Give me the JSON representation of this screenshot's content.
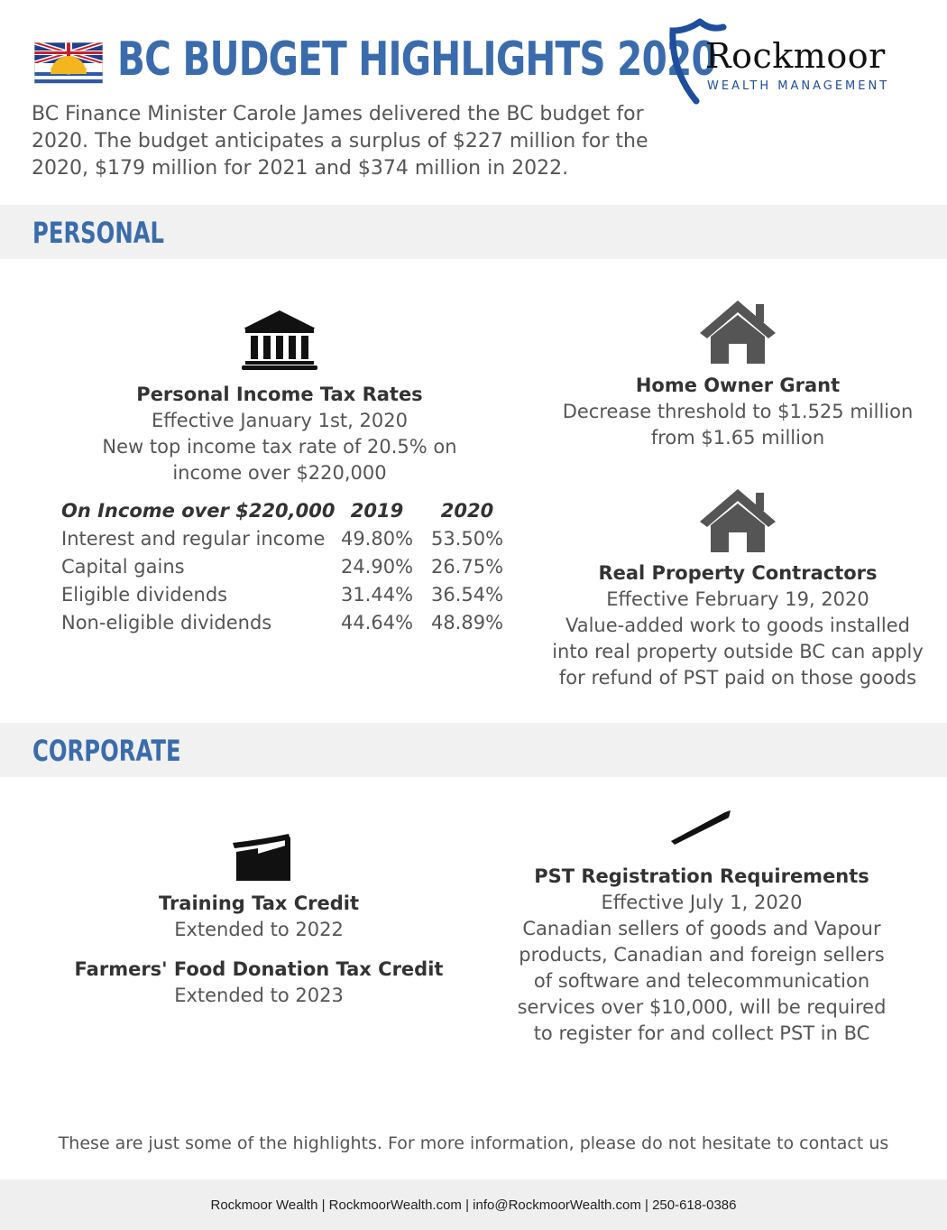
{
  "header": {
    "title": "BC BUDGET HIGHLIGHTS 2020",
    "intro_lines": [
      "BC Finance Minister Carole James delivered the BC budget for",
      "2020.  The budget anticipates a surplus of $227 million for the",
      "2020, $179 million for 2021 and $374 million in 2022."
    ]
  },
  "logo": {
    "name": "Rockmoor",
    "subtitle": "WEALTH MANAGEMENT",
    "shield_color": "#1f4e9c"
  },
  "colors": {
    "accent": "#3a6cad",
    "band": "#f1f1f1"
  },
  "sections": {
    "personal": {
      "label": "PERSONAL",
      "income_tax": {
        "icon": "bank-icon",
        "title": "Personal Income Tax Rates",
        "lines": [
          "Effective January 1st, 2020",
          "New top income tax rate of 20.5% on",
          "income over $220,000"
        ]
      },
      "rates_table": {
        "headers": [
          "On Income over $220,000",
          "2019",
          "2020"
        ],
        "rows": [
          [
            "Interest and regular income",
            "49.80%",
            "53.50%"
          ],
          [
            "Capital gains",
            "24.90%",
            "26.75%"
          ],
          [
            "Eligible dividends",
            "31.44%",
            "36.54%"
          ],
          [
            "Non-eligible dividends",
            "44.64%",
            "48.89%"
          ]
        ]
      },
      "home_owner": {
        "icon": "house-icon",
        "title": "Home Owner Grant",
        "lines": [
          "Decrease threshold to $1.525 million",
          "from $1.65 million"
        ]
      },
      "contractors": {
        "icon": "house-icon",
        "title": "Real Property Contractors",
        "lines": [
          "Effective February 19, 2020",
          "Value-added work to goods installed",
          "into real property outside BC can apply",
          "for refund of PST paid on those goods"
        ]
      }
    },
    "corporate": {
      "label": "CORPORATE",
      "training": {
        "icon": "factory-icon",
        "title": "Training Tax Credit",
        "lines": [
          "Extended to 2022"
        ]
      },
      "farmers": {
        "title": "Farmers' Food Donation Tax Credit",
        "lines": [
          "Extended to 2023"
        ]
      },
      "pst": {
        "icon": "pen-icon",
        "title": "PST Registration  Requirements",
        "lines": [
          "Effective July 1, 2020",
          "Canadian sellers of goods and Vapour",
          "products, Canadian and foreign sellers",
          "of software and telecommunication",
          "services over $10,000, will be required",
          "to register for and collect PST in BC"
        ]
      }
    }
  },
  "closing": "These are just some of the highlights.  For more information, please do not hesitate to contact us",
  "footer": "Rockmoor Wealth | RockmoorWealth.com | info@RockmoorWealth.com | 250-618-0386"
}
